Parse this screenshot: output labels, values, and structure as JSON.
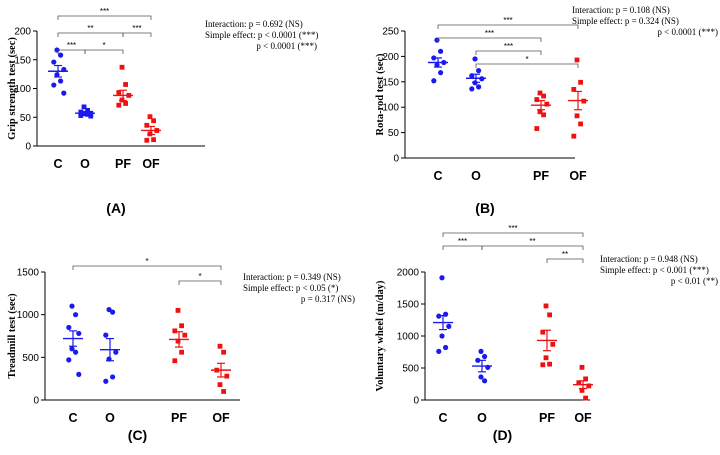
{
  "figure": {
    "colors": {
      "blue": "#1a1aee",
      "red": "#ee1111",
      "axis": "#000000"
    },
    "panels": [
      "A",
      "B",
      "C",
      "D"
    ]
  },
  "chart_data": [
    {
      "panel": "(A)",
      "type": "scatter",
      "title": "",
      "ylabel": "Grip strength test (sec)",
      "ylim": [
        0,
        200
      ],
      "yticks": [
        0,
        50,
        100,
        150,
        200
      ],
      "groups": [
        {
          "name": "C",
          "color": "blue",
          "marker": "circle",
          "mean": 130,
          "sem": 10,
          "points": [
            167,
            158,
            146,
            133,
            124,
            113,
            106,
            92
          ]
        },
        {
          "name": "O",
          "color": "blue",
          "marker": "square",
          "mean": 57,
          "sem": 3,
          "points": [
            68,
            62,
            59,
            57,
            56,
            55,
            53,
            52
          ]
        },
        {
          "name": "PF",
          "color": "red",
          "marker": "square",
          "mean": 88,
          "sem": 9,
          "points": [
            137,
            107,
            93,
            88,
            80,
            74,
            71
          ]
        },
        {
          "name": "OF",
          "color": "red",
          "marker": "square",
          "mean": 27,
          "sem": 7,
          "points": [
            51,
            44,
            36,
            27,
            21,
            11,
            10
          ]
        }
      ],
      "brackets": [
        {
          "from": "C",
          "to": "OF",
          "level": 3,
          "label": "***"
        },
        {
          "from": "C",
          "to": "PF",
          "level": 2,
          "label": "**"
        },
        {
          "from": "PF",
          "to": "OF",
          "level": 2,
          "label": "***"
        },
        {
          "from": "C",
          "to": "O",
          "level": 1,
          "label": "***"
        },
        {
          "from": "O",
          "to": "PF",
          "level": 1,
          "label": "*"
        }
      ],
      "stats": [
        "Interaction: p = 0.692 (NS)",
        "Simple effect: p < 0.0001 (***)",
        "p < 0.0001 (***)"
      ]
    },
    {
      "panel": "(B)",
      "type": "scatter",
      "title": "",
      "ylabel": "Rota-rod test (sec)",
      "ylim": [
        0,
        250
      ],
      "yticks": [
        0,
        50,
        100,
        150,
        200,
        250
      ],
      "groups": [
        {
          "name": "C",
          "color": "blue",
          "marker": "circle",
          "mean": 188,
          "sem": 9,
          "points": [
            232,
            210,
            197,
            188,
            183,
            168,
            152
          ]
        },
        {
          "name": "O",
          "color": "blue",
          "marker": "circle",
          "mean": 157,
          "sem": 8,
          "points": [
            195,
            172,
            162,
            156,
            148,
            140,
            136
          ]
        },
        {
          "name": "PF",
          "color": "red",
          "marker": "square",
          "mean": 104,
          "sem": 9,
          "points": [
            128,
            122,
            115,
            106,
            91,
            85,
            58
          ]
        },
        {
          "name": "OF",
          "color": "red",
          "marker": "square",
          "mean": 113,
          "sem": 18,
          "points": [
            193,
            149,
            135,
            112,
            83,
            67,
            43
          ]
        }
      ],
      "brackets": [
        {
          "from": "C",
          "to": "OF",
          "level": 4,
          "label": "***"
        },
        {
          "from": "C",
          "to": "PF",
          "level": 3,
          "label": "***"
        },
        {
          "from": "O",
          "to": "PF",
          "level": 2,
          "label": "***"
        },
        {
          "from": "O",
          "to": "OF",
          "level": 1,
          "label": "*"
        }
      ],
      "stats": [
        "Interaction: p = 0.108 (NS)",
        "Simple effect: p = 0.324 (NS)",
        "p < 0.0001 (***)"
      ]
    },
    {
      "panel": "(C)",
      "type": "scatter",
      "title": "",
      "ylabel": "Treadmill test (sec)",
      "ylim": [
        0,
        1500
      ],
      "yticks": [
        0,
        500,
        1000,
        1500
      ],
      "groups": [
        {
          "name": "C",
          "color": "blue",
          "marker": "circle",
          "mean": 720,
          "sem": 90,
          "points": [
            1100,
            1000,
            850,
            780,
            600,
            560,
            470,
            300
          ]
        },
        {
          "name": "O",
          "color": "blue",
          "marker": "circle",
          "mean": 590,
          "sem": 130,
          "points": [
            1060,
            1030,
            760,
            560,
            480,
            270,
            220
          ]
        },
        {
          "name": "PF",
          "color": "red",
          "marker": "square",
          "mean": 710,
          "sem": 90,
          "points": [
            1050,
            870,
            810,
            760,
            690,
            560,
            460
          ]
        },
        {
          "name": "OF",
          "color": "red",
          "marker": "square",
          "mean": 350,
          "sem": 80,
          "points": [
            630,
            560,
            350,
            280,
            180,
            100
          ]
        }
      ],
      "brackets": [
        {
          "from": "C",
          "to": "OF",
          "level": 2,
          "label": "*"
        },
        {
          "from": "PF",
          "to": "OF",
          "level": 1,
          "label": "*"
        }
      ],
      "stats": [
        "Interaction: p = 0.349 (NS)",
        "Simple effect: p < 0.05 (*)",
        "p = 0.317 (NS)"
      ]
    },
    {
      "panel": "(D)",
      "type": "scatter",
      "title": "",
      "ylabel": "Voluntary wheel (m/day)",
      "ylim": [
        0,
        2000
      ],
      "yticks": [
        0,
        500,
        1000,
        1500,
        2000
      ],
      "groups": [
        {
          "name": "C",
          "color": "blue",
          "marker": "circle",
          "mean": 1210,
          "sem": 110,
          "points": [
            1910,
            1340,
            1310,
            1150,
            1000,
            820,
            760
          ]
        },
        {
          "name": "O",
          "color": "blue",
          "marker": "circle",
          "mean": 530,
          "sem": 90,
          "points": [
            760,
            680,
            620,
            510,
            360,
            300
          ]
        },
        {
          "name": "PF",
          "color": "red",
          "marker": "square",
          "mean": 930,
          "sem": 160,
          "points": [
            1470,
            1330,
            1060,
            870,
            660,
            560,
            550
          ]
        },
        {
          "name": "OF",
          "color": "red",
          "marker": "square",
          "mean": 240,
          "sem": 60,
          "points": [
            510,
            330,
            270,
            220,
            150,
            30
          ]
        }
      ],
      "brackets": [
        {
          "from": "C",
          "to": "OF",
          "level": 3,
          "label": "***"
        },
        {
          "from": "C",
          "to": "O",
          "level": 2,
          "label": "***"
        },
        {
          "from": "O",
          "to": "OF",
          "level": 2,
          "label": "**"
        },
        {
          "from": "PF",
          "to": "OF",
          "level": 1,
          "label": "**"
        }
      ],
      "stats": [
        "Interaction: p = 0.948 (NS)",
        "Simple effect: p < 0.001 (***)",
        "p < 0.01 (**)"
      ]
    }
  ]
}
